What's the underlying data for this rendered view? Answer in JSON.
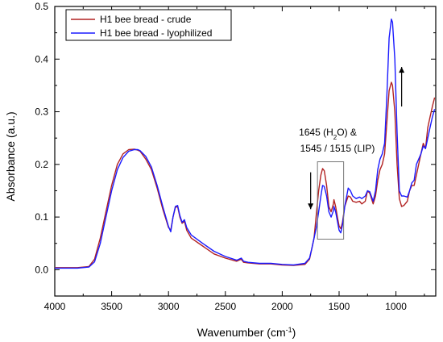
{
  "chart_data": {
    "type": "line",
    "xlabel": "Wavenumber (cm",
    "xlabel_sup": "-1",
    "xlabel_end": ")",
    "ylabel": "Absorbance (a.u.)",
    "xlim": [
      4000,
      650
    ],
    "ylim": [
      -0.05,
      0.5
    ],
    "x_ticks": [
      4000,
      3500,
      3000,
      2500,
      2000,
      1500,
      1000
    ],
    "x_tick_labels": [
      "4000",
      "3500",
      "3000",
      "2500",
      "2000",
      "1500",
      "1000"
    ],
    "y_ticks": [
      0.0,
      0.1,
      0.2,
      0.3,
      0.4,
      0.5
    ],
    "y_tick_labels": [
      "0.0",
      "0.1",
      "0.2",
      "0.3",
      "0.4",
      "0.5"
    ],
    "grid": false,
    "legend_position": "top-left",
    "annotation": {
      "line1_a": "1645 (H",
      "line1_sub": "2",
      "line1_b": "O) &",
      "line2": "1545 / 1515 (LIP)"
    },
    "arrows": [
      {
        "x": 1750,
        "direction": "down",
        "y_from": 0.185,
        "y_to": 0.115
      },
      {
        "x": 950,
        "direction": "up",
        "y_from": 0.31,
        "y_to": 0.385
      }
    ],
    "highlight_box": {
      "x_from": 1690,
      "x_to": 1460,
      "y_from": 0.058,
      "y_to": 0.205
    },
    "series": [
      {
        "name": "H1 bee bread - crude",
        "color": "#b22222",
        "points": [
          [
            4000,
            0.004
          ],
          [
            3800,
            0.004
          ],
          [
            3700,
            0.006
          ],
          [
            3650,
            0.02
          ],
          [
            3600,
            0.06
          ],
          [
            3550,
            0.11
          ],
          [
            3500,
            0.16
          ],
          [
            3450,
            0.2
          ],
          [
            3400,
            0.22
          ],
          [
            3350,
            0.228
          ],
          [
            3300,
            0.229
          ],
          [
            3270,
            0.227
          ],
          [
            3250,
            0.225
          ],
          [
            3200,
            0.21
          ],
          [
            3150,
            0.19
          ],
          [
            3100,
            0.155
          ],
          [
            3050,
            0.115
          ],
          [
            3000,
            0.08
          ],
          [
            2980,
            0.075
          ],
          [
            2960,
            0.1
          ],
          [
            2940,
            0.118
          ],
          [
            2920,
            0.12
          ],
          [
            2900,
            0.1
          ],
          [
            2880,
            0.088
          ],
          [
            2860,
            0.092
          ],
          [
            2840,
            0.075
          ],
          [
            2800,
            0.06
          ],
          [
            2700,
            0.045
          ],
          [
            2600,
            0.03
          ],
          [
            2500,
            0.022
          ],
          [
            2400,
            0.016
          ],
          [
            2360,
            0.02
          ],
          [
            2340,
            0.014
          ],
          [
            2300,
            0.013
          ],
          [
            2200,
            0.011
          ],
          [
            2100,
            0.011
          ],
          [
            2000,
            0.009
          ],
          [
            1900,
            0.008
          ],
          [
            1800,
            0.01
          ],
          [
            1760,
            0.02
          ],
          [
            1740,
            0.04
          ],
          [
            1720,
            0.06
          ],
          [
            1700,
            0.105
          ],
          [
            1680,
            0.15
          ],
          [
            1660,
            0.18
          ],
          [
            1645,
            0.192
          ],
          [
            1630,
            0.188
          ],
          [
            1610,
            0.16
          ],
          [
            1590,
            0.12
          ],
          [
            1570,
            0.11
          ],
          [
            1550,
            0.125
          ],
          [
            1545,
            0.133
          ],
          [
            1530,
            0.12
          ],
          [
            1515,
            0.1
          ],
          [
            1500,
            0.083
          ],
          [
            1485,
            0.078
          ],
          [
            1470,
            0.09
          ],
          [
            1450,
            0.12
          ],
          [
            1420,
            0.14
          ],
          [
            1400,
            0.138
          ],
          [
            1380,
            0.13
          ],
          [
            1350,
            0.128
          ],
          [
            1320,
            0.13
          ],
          [
            1300,
            0.125
          ],
          [
            1270,
            0.13
          ],
          [
            1250,
            0.15
          ],
          [
            1230,
            0.145
          ],
          [
            1200,
            0.125
          ],
          [
            1180,
            0.14
          ],
          [
            1160,
            0.17
          ],
          [
            1140,
            0.19
          ],
          [
            1120,
            0.2
          ],
          [
            1100,
            0.22
          ],
          [
            1080,
            0.28
          ],
          [
            1060,
            0.34
          ],
          [
            1040,
            0.356
          ],
          [
            1030,
            0.35
          ],
          [
            1010,
            0.3
          ],
          [
            990,
            0.2
          ],
          [
            970,
            0.135
          ],
          [
            950,
            0.12
          ],
          [
            930,
            0.122
          ],
          [
            900,
            0.13
          ],
          [
            880,
            0.15
          ],
          [
            860,
            0.16
          ],
          [
            840,
            0.16
          ],
          [
            820,
            0.18
          ],
          [
            800,
            0.2
          ],
          [
            780,
            0.22
          ],
          [
            760,
            0.24
          ],
          [
            740,
            0.23
          ],
          [
            720,
            0.27
          ],
          [
            700,
            0.29
          ],
          [
            680,
            0.31
          ],
          [
            660,
            0.327
          ]
        ]
      },
      {
        "name": "H1 bee bread - lyophilized",
        "color": "#1a1aff",
        "points": [
          [
            4000,
            0.003
          ],
          [
            3800,
            0.003
          ],
          [
            3700,
            0.005
          ],
          [
            3650,
            0.015
          ],
          [
            3600,
            0.05
          ],
          [
            3550,
            0.1
          ],
          [
            3500,
            0.15
          ],
          [
            3450,
            0.19
          ],
          [
            3400,
            0.213
          ],
          [
            3350,
            0.225
          ],
          [
            3300,
            0.228
          ],
          [
            3270,
            0.228
          ],
          [
            3250,
            0.226
          ],
          [
            3200,
            0.215
          ],
          [
            3150,
            0.195
          ],
          [
            3100,
            0.16
          ],
          [
            3050,
            0.12
          ],
          [
            3000,
            0.082
          ],
          [
            2980,
            0.072
          ],
          [
            2960,
            0.1
          ],
          [
            2940,
            0.12
          ],
          [
            2920,
            0.122
          ],
          [
            2900,
            0.103
          ],
          [
            2880,
            0.09
          ],
          [
            2860,
            0.095
          ],
          [
            2840,
            0.08
          ],
          [
            2800,
            0.066
          ],
          [
            2700,
            0.05
          ],
          [
            2600,
            0.035
          ],
          [
            2500,
            0.025
          ],
          [
            2400,
            0.018
          ],
          [
            2360,
            0.022
          ],
          [
            2340,
            0.016
          ],
          [
            2300,
            0.014
          ],
          [
            2200,
            0.012
          ],
          [
            2100,
            0.012
          ],
          [
            2000,
            0.01
          ],
          [
            1900,
            0.009
          ],
          [
            1800,
            0.012
          ],
          [
            1760,
            0.022
          ],
          [
            1740,
            0.04
          ],
          [
            1720,
            0.06
          ],
          [
            1700,
            0.08
          ],
          [
            1680,
            0.11
          ],
          [
            1660,
            0.14
          ],
          [
            1645,
            0.16
          ],
          [
            1630,
            0.158
          ],
          [
            1610,
            0.14
          ],
          [
            1590,
            0.11
          ],
          [
            1570,
            0.1
          ],
          [
            1550,
            0.112
          ],
          [
            1545,
            0.12
          ],
          [
            1530,
            0.11
          ],
          [
            1515,
            0.092
          ],
          [
            1500,
            0.075
          ],
          [
            1485,
            0.07
          ],
          [
            1470,
            0.085
          ],
          [
            1450,
            0.12
          ],
          [
            1420,
            0.155
          ],
          [
            1400,
            0.15
          ],
          [
            1380,
            0.14
          ],
          [
            1350,
            0.135
          ],
          [
            1320,
            0.138
          ],
          [
            1300,
            0.135
          ],
          [
            1270,
            0.14
          ],
          [
            1250,
            0.15
          ],
          [
            1230,
            0.148
          ],
          [
            1200,
            0.13
          ],
          [
            1180,
            0.15
          ],
          [
            1160,
            0.19
          ],
          [
            1140,
            0.21
          ],
          [
            1120,
            0.22
          ],
          [
            1100,
            0.24
          ],
          [
            1080,
            0.33
          ],
          [
            1060,
            0.44
          ],
          [
            1040,
            0.476
          ],
          [
            1030,
            0.47
          ],
          [
            1010,
            0.4
          ],
          [
            990,
            0.26
          ],
          [
            970,
            0.15
          ],
          [
            950,
            0.14
          ],
          [
            930,
            0.14
          ],
          [
            900,
            0.138
          ],
          [
            880,
            0.15
          ],
          [
            860,
            0.165
          ],
          [
            840,
            0.17
          ],
          [
            820,
            0.2
          ],
          [
            800,
            0.21
          ],
          [
            780,
            0.22
          ],
          [
            760,
            0.235
          ],
          [
            740,
            0.23
          ],
          [
            720,
            0.25
          ],
          [
            700,
            0.27
          ],
          [
            680,
            0.29
          ],
          [
            660,
            0.305
          ]
        ]
      }
    ]
  }
}
